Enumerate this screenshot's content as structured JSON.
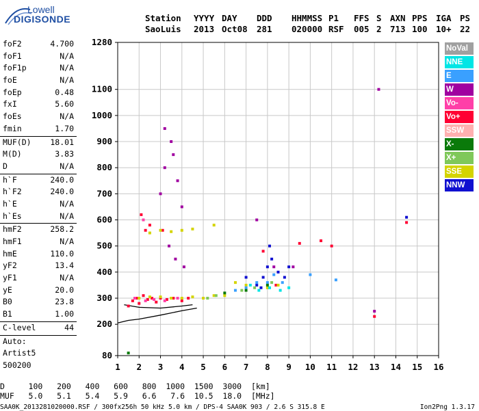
{
  "logo": {
    "line1": "Lowell",
    "line2": "DIGISONDE"
  },
  "header": {
    "labels": [
      "Station",
      "YYYY",
      "DAY",
      "DDD",
      "HHMMSS",
      "P1",
      "FFS",
      "S",
      "AXN",
      "PPS",
      "IGA",
      "PS"
    ],
    "values": [
      "SaoLuis",
      "2013",
      "Oct08",
      "281",
      "020000",
      "RSF",
      "005",
      "2",
      "713",
      "100",
      "10+",
      "22"
    ]
  },
  "params": [
    {
      "name": "foF2",
      "value": "4.700"
    },
    {
      "name": "foF1",
      "value": "N/A"
    },
    {
      "name": "foF1p",
      "value": "N/A"
    },
    {
      "name": "foE",
      "value": "N/A"
    },
    {
      "name": "foEp",
      "value": "0.48"
    },
    {
      "name": "fxI",
      "value": "5.60"
    },
    {
      "name": "foEs",
      "value": "N/A"
    },
    {
      "name": "fmin",
      "value": "1.70"
    },
    {
      "name": "MUF(D)",
      "value": "18.01",
      "sep": true
    },
    {
      "name": "M(D)",
      "value": "3.83"
    },
    {
      "name": "D",
      "value": "N/A"
    },
    {
      "name": "h`F",
      "value": "240.0",
      "sep": true
    },
    {
      "name": "h`F2",
      "value": "240.0"
    },
    {
      "name": "h`E",
      "value": "N/A"
    },
    {
      "name": "h`Es",
      "value": "N/A"
    },
    {
      "name": "hmF2",
      "value": "258.2",
      "sep": true
    },
    {
      "name": "hmF1",
      "value": "N/A"
    },
    {
      "name": "hmE",
      "value": "110.0"
    },
    {
      "name": "yF2",
      "value": "13.4"
    },
    {
      "name": "yF1",
      "value": "N/A"
    },
    {
      "name": "yE",
      "value": "20.0"
    },
    {
      "name": "B0",
      "value": "23.8"
    },
    {
      "name": "B1",
      "value": "1.00"
    },
    {
      "name": "C-level",
      "value": "44",
      "sep": true
    },
    {
      "name": "Auto:",
      "value": "",
      "sep": true
    },
    {
      "name": "Artist5",
      "value": ""
    },
    {
      "name": "500200",
      "value": ""
    }
  ],
  "legend": [
    {
      "label": "NoVal",
      "color": "#a0a0a0"
    },
    {
      "label": "NNE",
      "color": "#00e5e5"
    },
    {
      "label": "E",
      "color": "#3aa0ff"
    },
    {
      "label": "W",
      "color": "#a000a0"
    },
    {
      "label": "Vo-",
      "color": "#ff3fa8"
    },
    {
      "label": "Vo+",
      "color": "#ff0033"
    },
    {
      "label": "SSW",
      "color": "#ffb0b0"
    },
    {
      "label": "X-",
      "color": "#0a7a0a"
    },
    {
      "label": "X+",
      "color": "#7fc85a"
    },
    {
      "label": "SSE",
      "color": "#d4d400"
    },
    {
      "label": "NNW",
      "color": "#1010d0"
    }
  ],
  "footer": {
    "d_line": "D     100   200   400   600   800  1000  1500  3000  [km]",
    "muf_line": "MUF   5.0   5.1   5.4   5.9   6.6   7.6  10.5  18.0  [MHz]",
    "file_line": "SAA0K_2013281020000.RSF / 300fx256h 50 kHz 5.0 km / DPS-4 SAA0K 903 / 2.6 S 315.8 E",
    "version": "Ion2Png 1.3.17"
  },
  "chart_data": {
    "type": "scatter",
    "title": "",
    "xlabel": "",
    "ylabel": "",
    "xlim": [
      1,
      16
    ],
    "ylim": [
      80,
      1280
    ],
    "xticks": [
      "1",
      "2",
      "3",
      "4",
      "5",
      "6",
      "7",
      "8",
      "9",
      "10",
      "11",
      "12",
      "13",
      "14",
      "15",
      "16"
    ],
    "yticks": [
      80,
      200,
      300,
      400,
      500,
      600,
      700,
      800,
      900,
      1000,
      1100,
      1280
    ],
    "grid": true,
    "series": [
      {
        "name": "Vo+",
        "points": [
          [
            1.5,
            270
          ],
          [
            1.7,
            290
          ],
          [
            1.9,
            300
          ],
          [
            2.0,
            280
          ],
          [
            2.2,
            310
          ],
          [
            2.4,
            295
          ],
          [
            2.6,
            300
          ],
          [
            2.8,
            285
          ],
          [
            3.0,
            300
          ],
          [
            3.3,
            295
          ],
          [
            3.6,
            300
          ],
          [
            4.0,
            290
          ],
          [
            4.3,
            300
          ],
          [
            2.3,
            560
          ],
          [
            2.5,
            580
          ],
          [
            2.1,
            620
          ],
          [
            3.1,
            560
          ],
          [
            7.8,
            480
          ],
          [
            8.4,
            350
          ],
          [
            9.5,
            510
          ],
          [
            10.5,
            520
          ],
          [
            11.0,
            500
          ],
          [
            13.0,
            230
          ],
          [
            14.5,
            590
          ]
        ]
      },
      {
        "name": "SSE",
        "points": [
          [
            2.0,
            300
          ],
          [
            2.5,
            305
          ],
          [
            3.0,
            305
          ],
          [
            3.5,
            300
          ],
          [
            4.0,
            300
          ],
          [
            4.5,
            305
          ],
          [
            5.0,
            300
          ],
          [
            5.5,
            310
          ],
          [
            6.0,
            310
          ],
          [
            2.5,
            550
          ],
          [
            3.0,
            560
          ],
          [
            3.5,
            555
          ],
          [
            4.0,
            560
          ],
          [
            4.5,
            565
          ],
          [
            5.5,
            580
          ],
          [
            6.5,
            360
          ],
          [
            7.0,
            350
          ],
          [
            8.0,
            340
          ],
          [
            8.5,
            350
          ]
        ]
      },
      {
        "name": "W",
        "points": [
          [
            3.0,
            700
          ],
          [
            3.2,
            800
          ],
          [
            3.5,
            900
          ],
          [
            3.8,
            750
          ],
          [
            4.0,
            650
          ],
          [
            3.4,
            500
          ],
          [
            3.7,
            450
          ],
          [
            4.1,
            420
          ],
          [
            3.2,
            950
          ],
          [
            3.6,
            850
          ],
          [
            7.5,
            600
          ],
          [
            8.3,
            420
          ],
          [
            9.2,
            420
          ],
          [
            13.2,
            1100
          ],
          [
            13.0,
            250
          ]
        ]
      },
      {
        "name": "NNW",
        "points": [
          [
            7.0,
            380
          ],
          [
            7.5,
            350
          ],
          [
            7.8,
            380
          ],
          [
            8.0,
            420
          ],
          [
            8.2,
            450
          ],
          [
            8.5,
            400
          ],
          [
            8.8,
            380
          ],
          [
            9.0,
            420
          ],
          [
            8.1,
            500
          ],
          [
            7.7,
            340
          ],
          [
            14.5,
            610
          ]
        ]
      },
      {
        "name": "E",
        "points": [
          [
            6.5,
            330
          ],
          [
            7.0,
            340
          ],
          [
            7.5,
            360
          ],
          [
            8.0,
            360
          ],
          [
            8.3,
            390
          ],
          [
            8.7,
            360
          ],
          [
            10.0,
            390
          ],
          [
            11.2,
            370
          ]
        ]
      },
      {
        "name": "NNE",
        "points": [
          [
            7.2,
            350
          ],
          [
            7.6,
            330
          ],
          [
            8.1,
            340
          ],
          [
            8.6,
            330
          ],
          [
            9.0,
            340
          ]
        ]
      },
      {
        "name": "X+",
        "points": [
          [
            5.2,
            300
          ],
          [
            5.6,
            310
          ],
          [
            6.8,
            330
          ],
          [
            7.4,
            340
          ],
          [
            8.2,
            360
          ]
        ]
      },
      {
        "name": "X-",
        "points": [
          [
            6.0,
            320
          ],
          [
            7.0,
            330
          ],
          [
            8.0,
            350
          ],
          [
            1.5,
            90
          ]
        ]
      },
      {
        "name": "Vo-",
        "points": [
          [
            1.8,
            300
          ],
          [
            2.3,
            290
          ],
          [
            2.7,
            295
          ],
          [
            3.2,
            290
          ],
          [
            3.8,
            300
          ],
          [
            2.2,
            600
          ]
        ]
      }
    ],
    "lines": [
      {
        "name": "trace-1",
        "points": [
          [
            1.0,
            205
          ],
          [
            1.5,
            215
          ],
          [
            2.0,
            220
          ],
          [
            3.0,
            235
          ],
          [
            4.0,
            252
          ],
          [
            4.7,
            262
          ]
        ]
      },
      {
        "name": "trace-2",
        "points": [
          [
            1.3,
            275
          ],
          [
            2.0,
            265
          ],
          [
            3.0,
            262
          ],
          [
            4.0,
            270
          ],
          [
            4.5,
            275
          ]
        ]
      }
    ]
  }
}
